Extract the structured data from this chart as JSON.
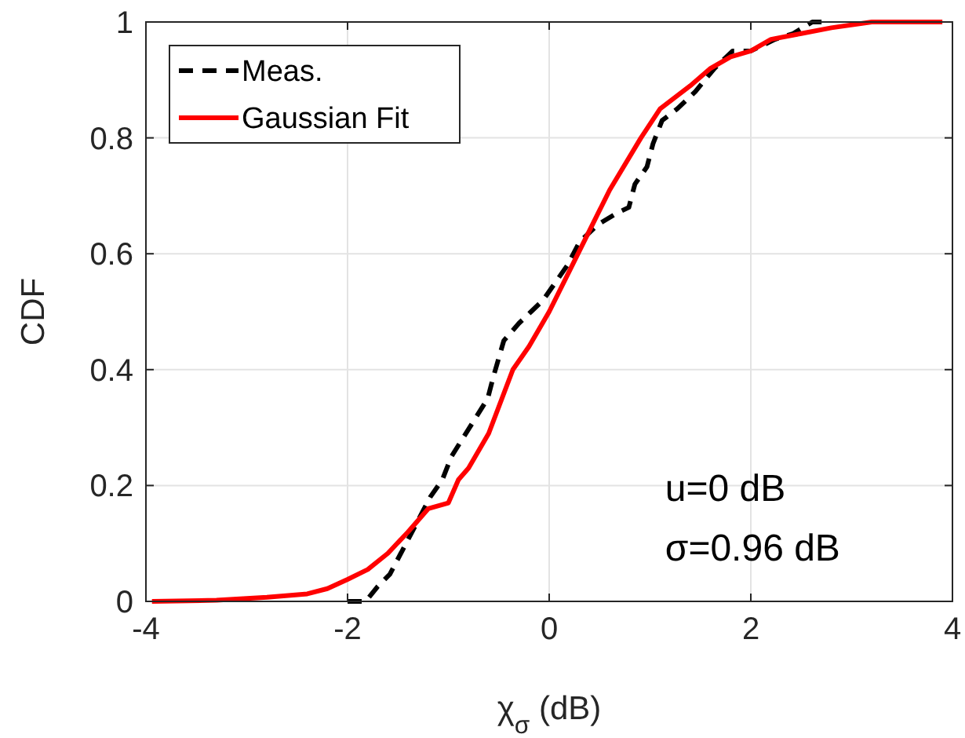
{
  "chart_data": {
    "type": "line",
    "xlabel": "χ$_{σ}$ (dB)",
    "ylabel": "CDF",
    "xlim": [
      -4,
      4
    ],
    "xticks": [
      -4,
      -2,
      0,
      2,
      4
    ],
    "ylim": [
      0,
      1
    ],
    "yticks": [
      0,
      0.2,
      0.4,
      0.6,
      0.8,
      1
    ],
    "grid": true,
    "legend": "top left",
    "annotations": [
      "u=0 dB",
      "σ=0.96 dB"
    ],
    "series": [
      {
        "name": "Meas.",
        "color": "#000000",
        "line_style": "dashed",
        "x": [
          -2.0,
          -1.82,
          -1.7,
          -1.58,
          -1.45,
          -1.33,
          -1.18,
          -1.06,
          -0.97,
          -0.79,
          -0.61,
          -0.55,
          -0.45,
          -0.3,
          -0.18,
          -0.06,
          0.06,
          0.18,
          0.3,
          0.48,
          0.67,
          0.79,
          0.85,
          0.97,
          1.03,
          1.12,
          1.27,
          1.45,
          1.64,
          1.82,
          2.0,
          2.24,
          2.42,
          2.61,
          2.73
        ],
        "values": [
          0,
          0,
          0.026,
          0.047,
          0.09,
          0.13,
          0.18,
          0.21,
          0.25,
          0.3,
          0.35,
          0.39,
          0.45,
          0.48,
          0.5,
          0.52,
          0.55,
          0.58,
          0.62,
          0.65,
          0.67,
          0.68,
          0.72,
          0.75,
          0.79,
          0.83,
          0.85,
          0.88,
          0.92,
          0.95,
          0.95,
          0.97,
          0.98,
          1,
          1
        ]
      },
      {
        "name": "Gaussian Fit",
        "color": "#ff0000",
        "line_style": "solid",
        "x": [
          -3.94,
          -3.3,
          -2.8,
          -2.4,
          -2.2,
          -2.0,
          -1.8,
          -1.6,
          -1.4,
          -1.2,
          -1.0,
          -0.9,
          -0.8,
          -0.6,
          -0.36,
          -0.2,
          0,
          0.2,
          0.4,
          0.6,
          0.91,
          1.1,
          1.4,
          1.6,
          1.8,
          2.0,
          2.2,
          2.5,
          2.8,
          3.2,
          3.9
        ],
        "values": [
          0,
          0.002,
          0.007,
          0.013,
          0.022,
          0.038,
          0.055,
          0.083,
          0.12,
          0.16,
          0.17,
          0.21,
          0.23,
          0.29,
          0.4,
          0.44,
          0.5,
          0.57,
          0.64,
          0.71,
          0.8,
          0.85,
          0.89,
          0.92,
          0.94,
          0.95,
          0.97,
          0.98,
          0.99,
          1,
          1
        ]
      }
    ]
  }
}
